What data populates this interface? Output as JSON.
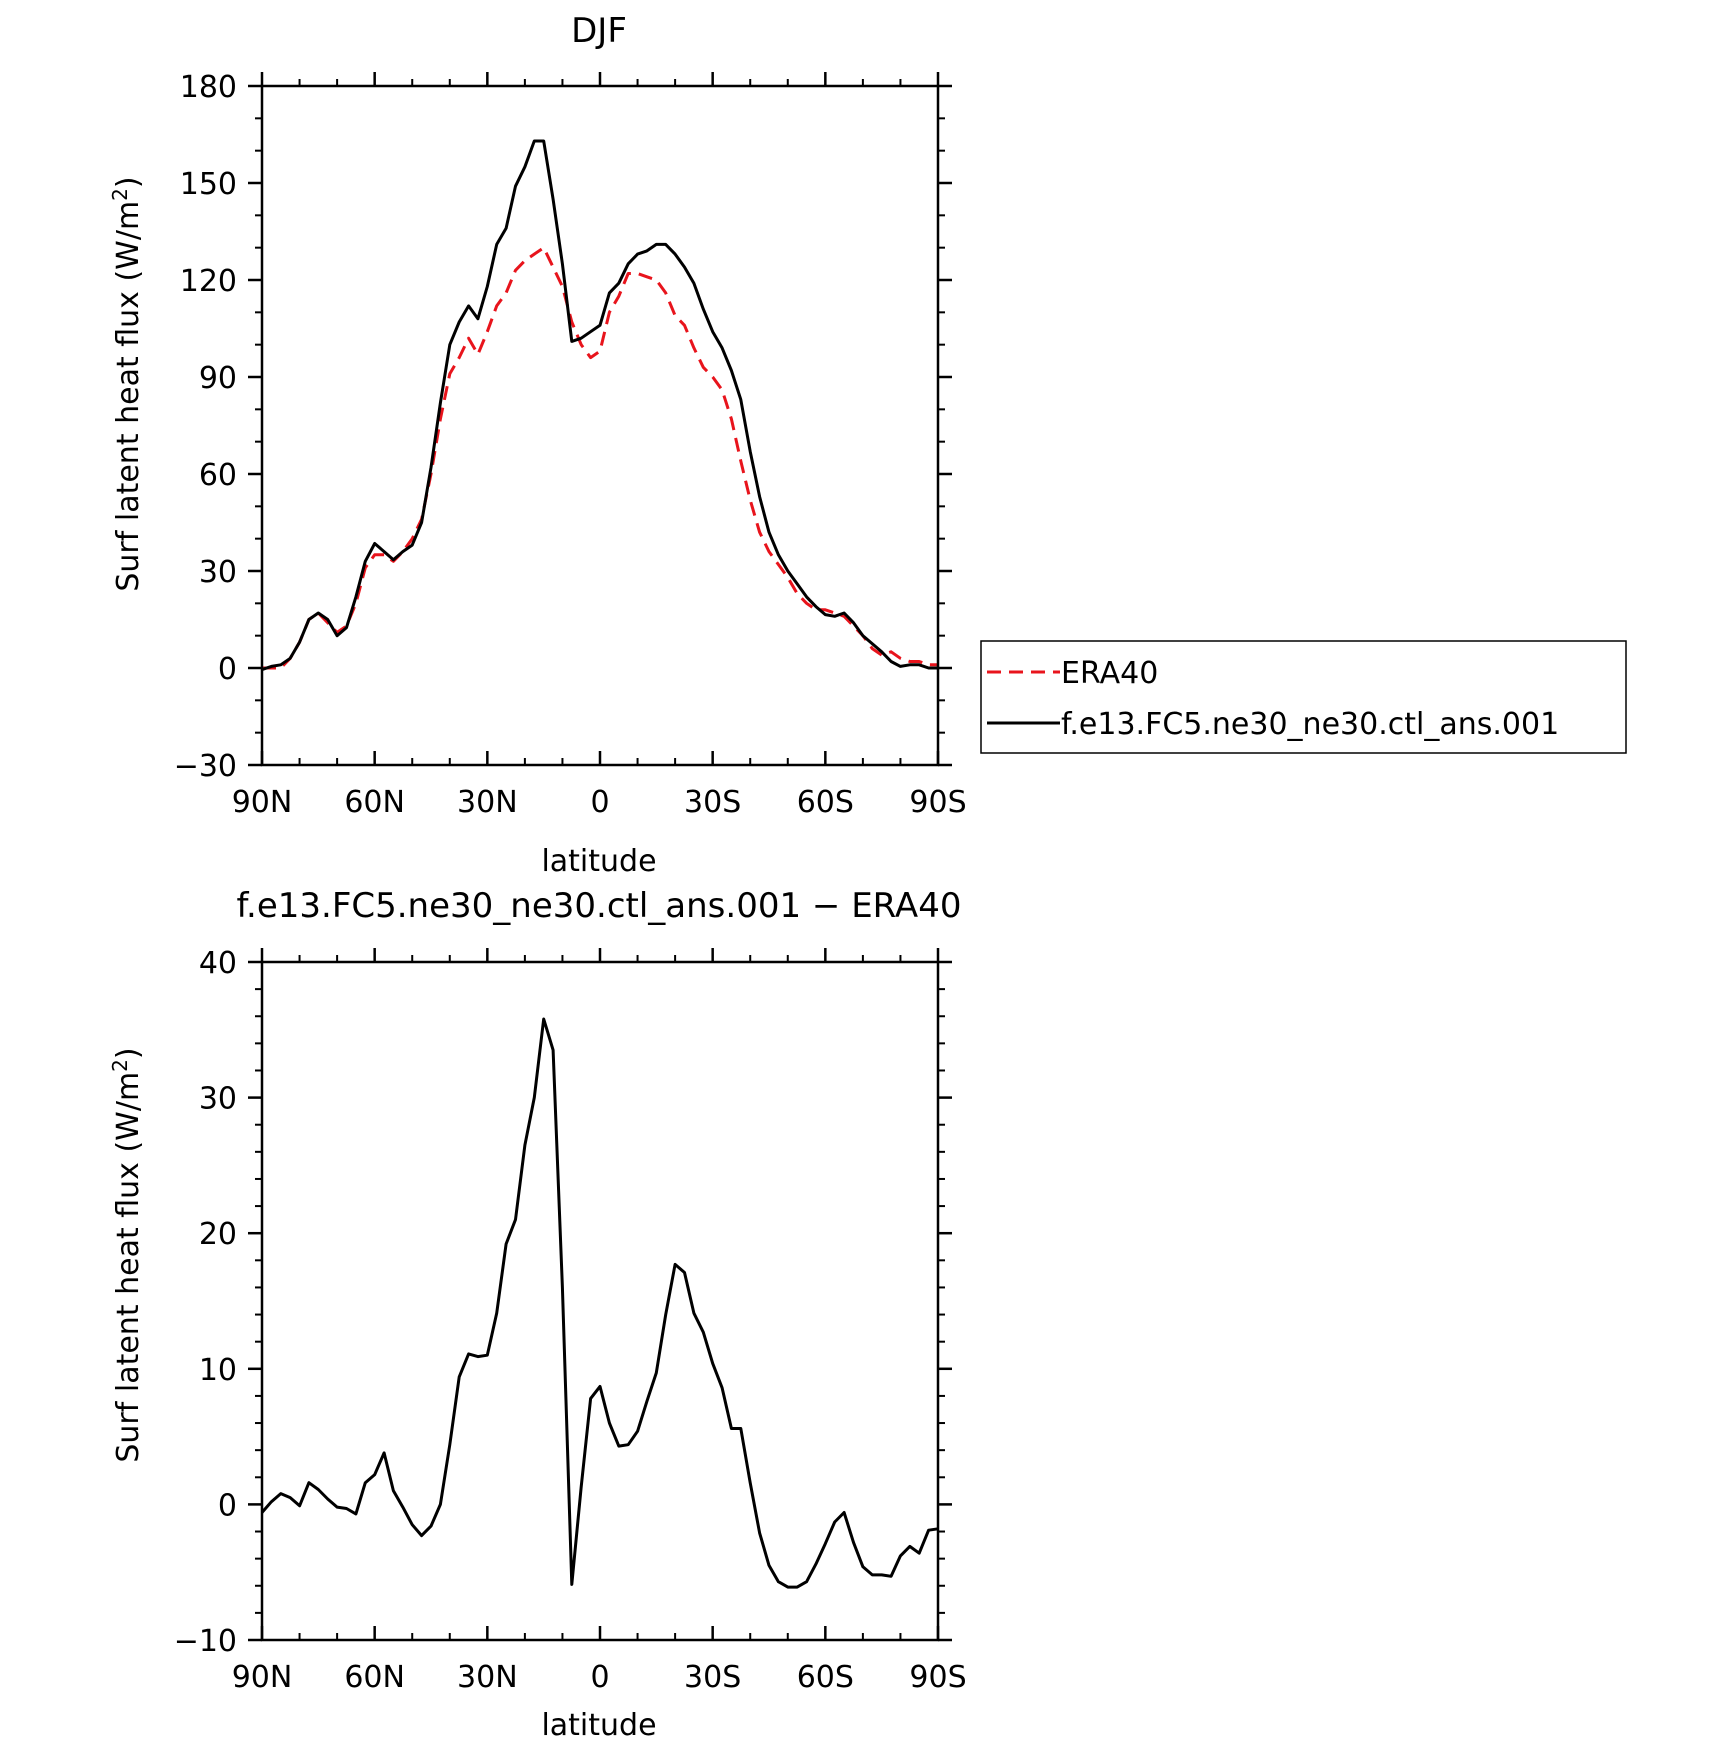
{
  "chart_data": [
    {
      "type": "line",
      "title": "DJF",
      "xlabel": "latitude",
      "ylabel": "Surf latent heat flux (W/m²)",
      "xlim": [
        90,
        -90
      ],
      "ylim": [
        -30,
        180
      ],
      "x_ticks": [
        90,
        60,
        30,
        0,
        -30,
        -60,
        -90
      ],
      "x_tick_labels": [
        "90N",
        "60N",
        "30N",
        "0",
        "30S",
        "60S",
        "90S"
      ],
      "y_ticks": [
        -30,
        0,
        30,
        60,
        90,
        120,
        150,
        180
      ],
      "y_tick_labels": [
        "−30",
        "0",
        "30",
        "60",
        "90",
        "120",
        "150",
        "180"
      ],
      "legend": {
        "placement": "right",
        "entries": [
          "ERA40",
          "f.e13.FC5.ne30_ne30.ctl_ans.001"
        ]
      },
      "series": [
        {
          "name": "ERA40",
          "color": "#e8141c",
          "dash": "dashed",
          "x": [
            90,
            87.5,
            85,
            82.5,
            80,
            77.5,
            75,
            72.5,
            70,
            67.5,
            65,
            62.5,
            60,
            57.5,
            55,
            52.5,
            50,
            47.5,
            45,
            42.5,
            40,
            37.5,
            35,
            32.5,
            30,
            27.5,
            25,
            22.5,
            20,
            17.5,
            15,
            12.5,
            10,
            7.5,
            5,
            2.5,
            0,
            -2.5,
            -5,
            -7.5,
            -10,
            -12.5,
            -15,
            -17.5,
            -20,
            -22.5,
            -25,
            -27.5,
            -30,
            -32.5,
            -35,
            -37.5,
            -40,
            -42.5,
            -45,
            -47.5,
            -50,
            -52.5,
            -55,
            -57.5,
            -60,
            -62.5,
            -65,
            -67.5,
            -70,
            -72.5,
            -75,
            -77.5,
            -80,
            -82.5,
            -85,
            -87.5,
            -90
          ],
          "y": [
            0,
            0,
            0,
            3,
            8,
            15,
            17,
            14,
            11,
            13,
            20,
            31,
            35,
            35,
            33,
            36,
            40,
            46,
            60,
            77,
            91,
            96,
            102,
            97,
            104,
            112,
            116,
            123,
            126,
            128,
            130,
            124,
            118,
            107,
            100,
            96,
            98,
            110,
            115,
            122,
            122,
            121,
            120,
            116,
            109,
            106,
            99,
            93,
            90,
            86,
            77,
            64,
            52,
            42,
            36,
            32,
            28,
            23,
            20,
            18,
            18,
            17,
            16,
            13,
            10,
            6,
            4,
            5,
            3,
            2,
            2,
            1,
            1
          ]
        },
        {
          "name": "f.e13.FC5.ne30_ne30.ctl_ans.001",
          "color": "#000000",
          "dash": "solid",
          "x": [
            90,
            87.5,
            85,
            82.5,
            80,
            77.5,
            75,
            72.5,
            70,
            67.5,
            65,
            62.5,
            60,
            57.5,
            55,
            52.5,
            50,
            47.5,
            45,
            42.5,
            40,
            37.5,
            35,
            32.5,
            30,
            27.5,
            25,
            22.5,
            20,
            17.5,
            15,
            12.5,
            10,
            7.5,
            5,
            2.5,
            0,
            -2.5,
            -5,
            -7.5,
            -10,
            -12.5,
            -15,
            -17.5,
            -20,
            -22.5,
            -25,
            -27.5,
            -30,
            -32.5,
            -35,
            -37.5,
            -40,
            -42.5,
            -45,
            -47.5,
            -50,
            -52.5,
            -55,
            -57.5,
            -60,
            -62.5,
            -65,
            -67.5,
            -70,
            -72.5,
            -75,
            -77.5,
            -80,
            -82.5,
            -85,
            -87.5,
            -90
          ],
          "y": [
            -0.5,
            0.5,
            1,
            3,
            8,
            15,
            17,
            15,
            10,
            12.5,
            22,
            33,
            38.5,
            36,
            33.5,
            36,
            38,
            45,
            62,
            82,
            100,
            107,
            112,
            108,
            118,
            131,
            136,
            149,
            155,
            163,
            163,
            145,
            125,
            101,
            102,
            104,
            106,
            116,
            119,
            125,
            128,
            129,
            131,
            131,
            128,
            124,
            119,
            111,
            104,
            99,
            92,
            83,
            67,
            53,
            42,
            35,
            30,
            26,
            22,
            19,
            16.5,
            16,
            17,
            14,
            10,
            7.5,
            5,
            2,
            0.5,
            1,
            1,
            0,
            0
          ]
        }
      ]
    },
    {
      "type": "line",
      "title": "f.e13.FC5.ne30_ne30.ctl_ans.001 − ERA40",
      "xlabel": "latitude",
      "ylabel": "Surf latent heat flux (W/m²)",
      "xlim": [
        90,
        -90
      ],
      "ylim": [
        -10,
        40
      ],
      "x_ticks": [
        90,
        60,
        30,
        0,
        -30,
        -60,
        -90
      ],
      "x_tick_labels": [
        "90N",
        "60N",
        "30N",
        "0",
        "30S",
        "60S",
        "90S"
      ],
      "y_ticks": [
        -10,
        0,
        10,
        20,
        30,
        40
      ],
      "y_tick_labels": [
        "−10",
        "0",
        "10",
        "20",
        "30",
        "40"
      ],
      "series": [
        {
          "color": "#000000",
          "dash": "solid",
          "x": [
            90,
            87.5,
            85,
            82.5,
            80,
            77.5,
            75,
            72.5,
            70,
            67.5,
            65,
            62.5,
            60,
            57.5,
            55,
            52.5,
            50,
            47.5,
            45,
            42.5,
            40,
            37.5,
            35,
            32.5,
            30,
            27.5,
            25,
            22.5,
            20,
            17.5,
            15,
            12.5,
            10,
            7.5,
            5,
            2.5,
            0,
            -2.5,
            -5,
            -7.5,
            -10,
            -12.5,
            -15,
            -17.5,
            -20,
            -22.5,
            -25,
            -27.5,
            -30,
            -32.5,
            -35,
            -37.5,
            -40,
            -42.5,
            -45,
            -47.5,
            -50,
            -52.5,
            -55,
            -57.5,
            -60,
            -62.5,
            -65,
            -67.5,
            -70,
            -72.5,
            -75,
            -77.5,
            -80,
            -82.5,
            -85,
            -87.5,
            -90
          ],
          "y": [
            -0.6,
            0.2,
            0.8,
            0.5,
            -0.1,
            1.6,
            1.1,
            0.4,
            -0.2,
            -0.3,
            -0.7,
            1.6,
            2.2,
            3.8,
            1.0,
            -0.2,
            -1.5,
            -2.3,
            -1.6,
            0.0,
            4.4,
            9.4,
            11.1,
            10.9,
            11.0,
            14.1,
            19.2,
            21.0,
            26.5,
            30.0,
            35.8,
            33.5,
            16.0,
            -5.9,
            1.3,
            7.8,
            8.7,
            6.0,
            4.3,
            4.4,
            5.4,
            7.6,
            9.7,
            14.0,
            17.7,
            17.1,
            14.1,
            12.7,
            10.4,
            8.6,
            5.6,
            5.6,
            1.6,
            -2.1,
            -4.5,
            -5.7,
            -6.1,
            -6.1,
            -5.7,
            -4.4,
            -2.9,
            -1.3,
            -0.6,
            -2.8,
            -4.6,
            -5.2,
            -5.2,
            -5.3,
            -3.8,
            -3.1,
            -3.6,
            -1.9,
            -1.8
          ]
        }
      ]
    }
  ]
}
